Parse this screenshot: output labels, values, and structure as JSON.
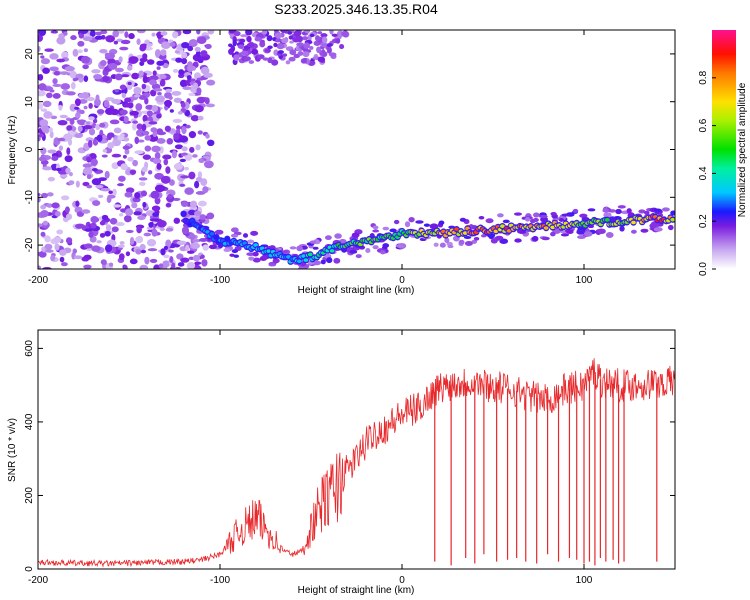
{
  "title": "S233.2025.346.13.35.R04",
  "colors": {
    "spec_low": "#8a2be2",
    "snr_line": "#e8282b",
    "axis": "#000000"
  },
  "chart_data": [
    {
      "type": "heatmap",
      "name": "spectrogram",
      "xlabel": "Height of straight line (km)",
      "ylabel": "Frequency (Hz)",
      "xlim": [
        -200,
        150
      ],
      "ylim": [
        -25,
        25
      ],
      "x_ticks": [
        -200,
        -100,
        0,
        100
      ],
      "x_tick_labels": [
        "-200",
        "-100",
        "0",
        "100"
      ],
      "y_ticks": [
        -20,
        -10,
        0,
        10,
        20
      ],
      "y_tick_labels": [
        "-20",
        "-10",
        "0",
        "10",
        "20"
      ],
      "ridge": {
        "description": "peak spectral amplitude vs height",
        "x": [
          -120,
          -110,
          -100,
          -90,
          -80,
          -70,
          -60,
          -50,
          -40,
          -30,
          -20,
          -10,
          0,
          10,
          20,
          40,
          60,
          80,
          100,
          120,
          140,
          150
        ],
        "freq": [
          -14,
          -17,
          -19,
          -19.5,
          -20.5,
          -22,
          -23,
          -22.5,
          -21,
          -20,
          -19,
          -18.5,
          -17.5,
          -17.5,
          -17.5,
          -17,
          -16.5,
          -16,
          -15.5,
          -15,
          -14.5,
          -14.5
        ],
        "amplitude": [
          0.25,
          0.3,
          0.3,
          0.35,
          0.35,
          0.4,
          0.35,
          0.45,
          0.45,
          0.55,
          0.6,
          0.55,
          0.55,
          0.7,
          0.8,
          0.85,
          0.85,
          0.8,
          0.6,
          0.65,
          0.9,
          0.8
        ]
      },
      "colorbar": {
        "label": "Normalized spectral amplitude",
        "range": [
          0,
          1
        ],
        "ticks": [
          0,
          0.2,
          0.4,
          0.6,
          0.8
        ],
        "tick_labels": [
          "0.0",
          "0.2",
          "0.4",
          "0.6",
          "0.8"
        ]
      }
    },
    {
      "type": "line",
      "name": "snr",
      "xlabel": "Height of straight line (km)",
      "ylabel": "SNR (10 * v/v)",
      "xlim": [
        -200,
        150
      ],
      "ylim": [
        0,
        650
      ],
      "x_ticks": [
        -200,
        -100,
        0,
        100
      ],
      "x_tick_labels": [
        "-200",
        "-100",
        "0",
        "100"
      ],
      "y_ticks": [
        0,
        200,
        400,
        600
      ],
      "y_tick_labels": [
        "0",
        "200",
        "400",
        "600"
      ],
      "series": [
        {
          "name": "SNR",
          "x": [
            -200,
            -180,
            -160,
            -140,
            -120,
            -110,
            -100,
            -95,
            -90,
            -85,
            -80,
            -75,
            -70,
            -65,
            -60,
            -55,
            -50,
            -45,
            -40,
            -35,
            -30,
            -25,
            -20,
            -15,
            -10,
            -5,
            0,
            5,
            10,
            15,
            20,
            25,
            30,
            40,
            50,
            60,
            70,
            80,
            90,
            100,
            105,
            110,
            120,
            130,
            140,
            150
          ],
          "y": [
            18,
            16,
            15,
            17,
            20,
            25,
            40,
            70,
            100,
            120,
            140,
            110,
            80,
            50,
            40,
            50,
            110,
            170,
            200,
            230,
            270,
            300,
            340,
            370,
            380,
            400,
            420,
            430,
            440,
            470,
            490,
            500,
            505,
            510,
            495,
            490,
            470,
            460,
            490,
            500,
            540,
            510,
            500,
            500,
            505,
            510
          ]
        }
      ],
      "dropouts_x": [
        18,
        27,
        35,
        40,
        45,
        52,
        58,
        63,
        68,
        74,
        80,
        86,
        92,
        96,
        100,
        103,
        106,
        109,
        112,
        116,
        119,
        122,
        140
      ],
      "dropouts_y": [
        20,
        10,
        30,
        15,
        40,
        20,
        25,
        30,
        20,
        15,
        40,
        20,
        30,
        25,
        15,
        20,
        10,
        30,
        20,
        25,
        15,
        20,
        20
      ]
    }
  ]
}
